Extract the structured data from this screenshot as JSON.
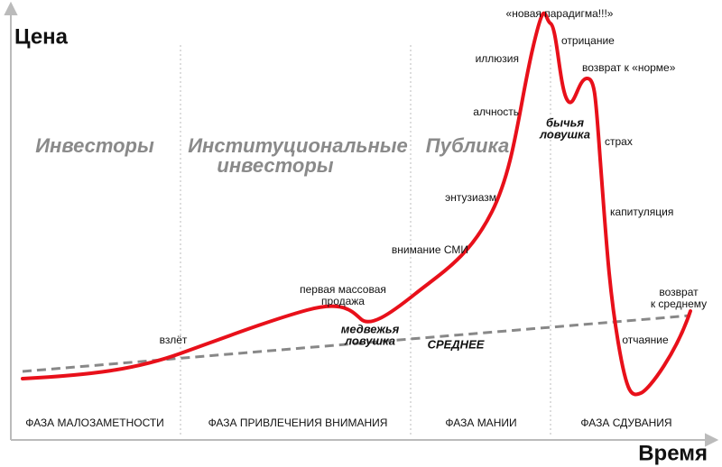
{
  "axes": {
    "y_label": "Цена",
    "x_label": "Время"
  },
  "groups": [
    {
      "lines": [
        "Инвесторы"
      ]
    },
    {
      "lines": [
        "Институциональные",
        "инвесторы"
      ]
    },
    {
      "lines": [
        "Публика"
      ]
    }
  ],
  "phases": [
    "ФАЗА МАЛОЗАМЕТНОСТИ",
    "ФАЗА ПРИВЛЕЧЕНИЯ ВНИМАНИЯ",
    "ФАЗА МАНИИ",
    "ФАЗА СДУВАНИЯ"
  ],
  "trend_label": "СРЕДНЕЕ",
  "stages": [
    {
      "lines": [
        "взлёт"
      ]
    },
    {
      "lines": [
        "первая массовая",
        "продажа"
      ]
    },
    {
      "lines": [
        "медвежья",
        "ловушка"
      ]
    },
    {
      "lines": [
        "внимание СМИ"
      ]
    },
    {
      "lines": [
        "энтузиазм"
      ]
    },
    {
      "lines": [
        "алчность"
      ]
    },
    {
      "lines": [
        "иллюзия"
      ]
    },
    {
      "lines": [
        "«новая парадигма!!!»"
      ]
    },
    {
      "lines": [
        "отрицание"
      ]
    },
    {
      "lines": [
        "бычья",
        "ловушка"
      ]
    },
    {
      "lines": [
        "возврат к «норме»"
      ]
    },
    {
      "lines": [
        "страх"
      ]
    },
    {
      "lines": [
        "капитуляция"
      ]
    },
    {
      "lines": [
        "отчаяние"
      ]
    },
    {
      "lines": [
        "возврат",
        "к среднему"
      ]
    }
  ]
}
